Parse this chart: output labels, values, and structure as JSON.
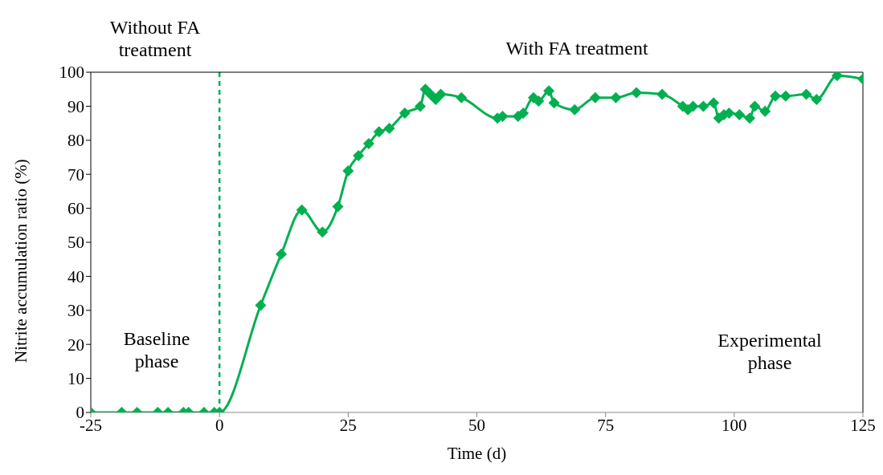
{
  "chart_data": {
    "type": "line",
    "xlabel": "Time (d)",
    "ylabel": "Nitrite accumulation ratio (%)",
    "series": [
      {
        "color": "#00b050",
        "x": [
          -25,
          -19,
          -16,
          -12,
          -10,
          -7,
          -6,
          -3,
          -1,
          0,
          8,
          12,
          16,
          20,
          23,
          25,
          27,
          29,
          31,
          33,
          36,
          39,
          40,
          41,
          42,
          43,
          47,
          54,
          55,
          58,
          59,
          61,
          62,
          64,
          65,
          69,
          73,
          77,
          81,
          86,
          90,
          91,
          92,
          94,
          96,
          97,
          98,
          99,
          101,
          103,
          104,
          106,
          108,
          110,
          114,
          116,
          120,
          125
        ],
        "values": [
          0,
          0,
          0,
          0,
          0,
          0,
          0,
          0,
          0,
          0,
          31.5,
          46.5,
          59.5,
          53,
          60.5,
          71,
          75.5,
          79,
          82.5,
          83.5,
          88,
          90,
          95,
          93.5,
          92,
          93.5,
          92.5,
          86.5,
          87,
          87,
          88,
          92.5,
          91.5,
          94.5,
          91,
          89,
          92.5,
          92.5,
          94,
          93.5,
          90,
          89,
          90,
          90,
          91,
          86.5,
          87.5,
          88,
          87.5,
          86.5,
          90,
          88.5,
          93,
          93,
          93.5,
          92,
          99,
          98
        ]
      }
    ],
    "xlim": [
      -25,
      125
    ],
    "xticks": [
      -25,
      0,
      25,
      50,
      75,
      100,
      125
    ],
    "ylim": [
      0,
      100
    ],
    "yticks": [
      0,
      10,
      20,
      30,
      40,
      50,
      60,
      70,
      80,
      90,
      100
    ],
    "grid": false,
    "legend": false,
    "marker": "diamond",
    "line_style": "solid",
    "ref_lines": [
      {
        "axis": "x",
        "value": 0,
        "color": "#00b050",
        "line_style": "dashed"
      }
    ],
    "annotations": [
      "Without FA treatment",
      "With FA treatment",
      "Baseline phase",
      "Experimental phase"
    ]
  }
}
